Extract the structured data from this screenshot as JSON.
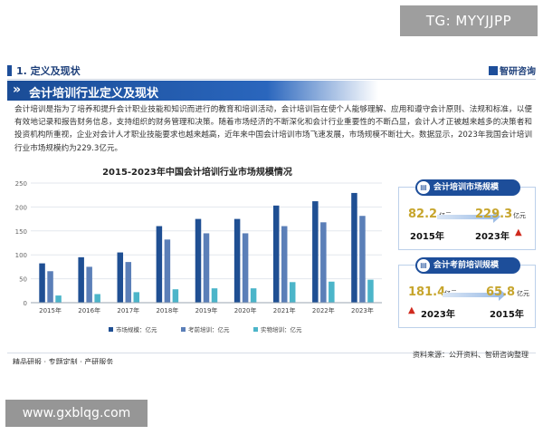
{
  "watermark_tag": "TG: MYYJJPP",
  "section": {
    "title": "1. 定义及现状",
    "brand": "智研咨询"
  },
  "banner": {
    "title": "会计培训行业定义及现状"
  },
  "paragraph": "会计培训是指为了培养和提升会计职业技能和知识而进行的教育和培训活动，会计培训旨在使个人能够理解、应用和遵守会计原则、法规和标准，以便有效地记录和报告财务信息，支持组织的财务管理和决策。随着市场经济的不断深化和会计行业重要性的不断凸显，会计人才正被越来越多的决策者和投资机构所重视，企业对会计人才职业技能要求也越来越高，近年来中国会计培训市场飞速发展，市场规模不断壮大。数据显示，2023年我国会计培训行业市场规模约为229.3亿元。",
  "card1": {
    "title": "会计培训市场规模",
    "from_value": "82.2",
    "from_unit": "亿元",
    "from_year": "2015年",
    "to_value": "229.3",
    "to_unit": "亿元",
    "to_year": "2023年"
  },
  "card2": {
    "title": "会计考前培训规模",
    "from_value": "181.4",
    "from_unit": "亿元",
    "from_year": "2023年",
    "to_value": "65.8",
    "to_unit": "亿元",
    "to_year": "2015年"
  },
  "footer": {
    "left": "精品研报 · 专题定制 · 产研服务",
    "right": "资料来源：公开资料、智研咨询整理"
  },
  "site_tag": "www.gxblqg.com",
  "colors": {
    "primary": "#1d4e9a",
    "series1": "#1f4f93",
    "series2": "#5b7fb8",
    "series3": "#4cb5c9",
    "highlight_value": "#c7a52c",
    "red_arrow": "#d02a1e"
  },
  "chart_data": {
    "type": "bar",
    "title": "2015-2023年中国会计培训行业市场规模情况",
    "categories": [
      "2015年",
      "2016年",
      "2017年",
      "2018年",
      "2019年",
      "2020年",
      "2021年",
      "2022年",
      "2023年"
    ],
    "series": [
      {
        "name": "市场规模：亿元",
        "values": [
          82.2,
          95,
          105,
          160,
          175,
          175,
          203,
          212,
          229.3
        ]
      },
      {
        "name": "考前培训：亿元",
        "values": [
          65.8,
          75,
          85,
          132,
          145,
          145,
          160,
          168,
          181.4
        ]
      },
      {
        "name": "实物培训：亿元",
        "values": [
          15,
          18,
          22,
          28,
          30,
          30,
          43,
          44,
          48
        ]
      }
    ],
    "y_ticks": [
      0,
      50,
      100,
      150,
      200,
      250
    ],
    "ylim": [
      0,
      250
    ],
    "grid": true,
    "legend": "bottom"
  }
}
